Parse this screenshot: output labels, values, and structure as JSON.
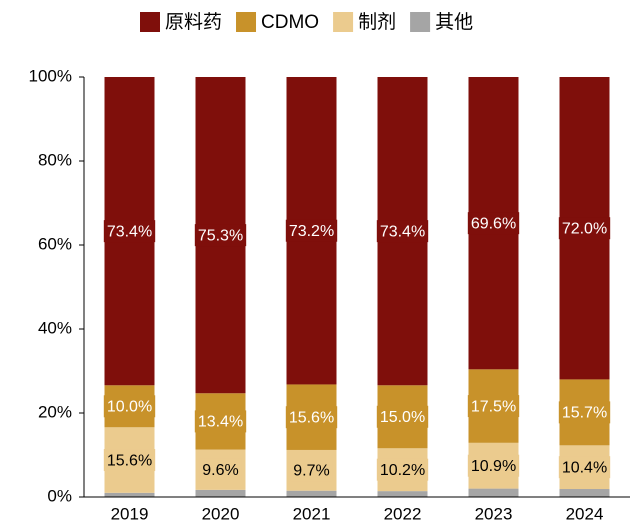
{
  "chart_data": {
    "type": "stacked_bar",
    "categories": [
      "2019",
      "2020",
      "2021",
      "2022",
      "2023",
      "2024"
    ],
    "series": [
      {
        "name": "原料药",
        "color": "#7f0f0b",
        "label_color": "#ffffff",
        "values": [
          73.4,
          75.3,
          73.2,
          73.4,
          69.6,
          72.0
        ],
        "value_labels": [
          "73.4%",
          "75.3%",
          "73.2%",
          "73.4%",
          "69.6%",
          "72.0%"
        ]
      },
      {
        "name": "CDMO",
        "color": "#c8922a",
        "label_color": "#ffffff",
        "values": [
          10.0,
          13.4,
          15.6,
          15.0,
          17.5,
          15.7
        ],
        "value_labels": [
          "10.0%",
          "13.4%",
          "15.6%",
          "15.0%",
          "17.5%",
          "15.7%"
        ]
      },
      {
        "name": "制剂",
        "color": "#ebcb8e",
        "label_color": "#000000",
        "values": [
          15.6,
          9.6,
          9.7,
          10.2,
          10.9,
          10.4
        ],
        "value_labels": [
          "15.6%",
          "9.6%",
          "9.7%",
          "10.2%",
          "10.9%",
          "10.4%"
        ]
      },
      {
        "name": "其他",
        "color": "#a5a5a5",
        "values": [
          1.0,
          1.7,
          1.5,
          1.4,
          2.0,
          1.9
        ]
      }
    ],
    "ylim": [
      0,
      100
    ],
    "yticks": [
      {
        "value": 0,
        "label": "0%"
      },
      {
        "value": 20,
        "label": "20%"
      },
      {
        "value": 40,
        "label": "40%"
      },
      {
        "value": 60,
        "label": "60%"
      },
      {
        "value": 80,
        "label": "80%"
      },
      {
        "value": 100,
        "label": "100%"
      }
    ],
    "legend": "top"
  }
}
